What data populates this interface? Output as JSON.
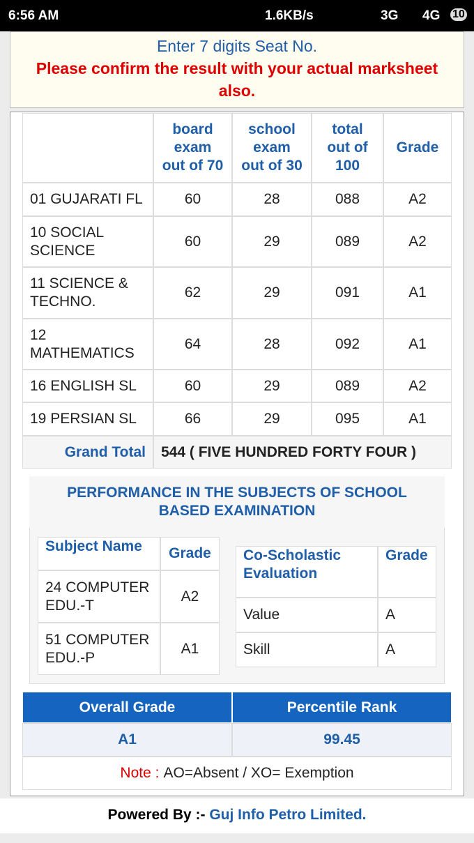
{
  "status_bar": {
    "time": "6:56 AM",
    "speed": "1.6KB/s",
    "net1": "3G",
    "net2": "4G",
    "battery": "10"
  },
  "notice": {
    "instruction": "Enter 7 digits Seat No.",
    "warning": "Please confirm the result with your actual marksheet also."
  },
  "results": {
    "headers": [
      [],
      [
        "board",
        "exam",
        "out of 70"
      ],
      [
        "school",
        "exam",
        "out of 30"
      ],
      [
        "total",
        "out of",
        "100"
      ],
      [
        "Grade"
      ]
    ],
    "rows": [
      [
        "01 GUJARATI FL",
        60,
        28,
        "088",
        "A2"
      ],
      [
        "10 SOCIAL SCIENCE",
        60,
        29,
        "089",
        "A2"
      ],
      [
        "11 SCIENCE & TECHNO.",
        62,
        29,
        "091",
        "A1"
      ],
      [
        "12 MATHEMATICS",
        64,
        28,
        "092",
        "A1"
      ],
      [
        "16 ENGLISH SL",
        60,
        29,
        "089",
        "A2"
      ],
      [
        "19 PERSIAN SL",
        66,
        29,
        "095",
        "A1"
      ]
    ],
    "grand_total": {
      "label": "Grand Total",
      "value": "544 ( FIVE HUNDRED FORTY FOUR )"
    }
  },
  "performance": {
    "title": "PERFORMANCE IN THE SUBJECTS OF SCHOOL BASED EXAMINATION",
    "school_table": {
      "headers": [
        "Subject Name",
        "Grade"
      ],
      "rows": [
        [
          "24 COMPUTER EDU.-T",
          "A2"
        ],
        [
          "51 COMPUTER EDU.-P",
          "A1"
        ]
      ]
    },
    "co_scholastic": {
      "headers": [
        "Co-Scholastic Evaluation",
        "Grade"
      ],
      "rows": [
        [
          "Value",
          "A"
        ],
        [
          "Skill",
          "A"
        ]
      ]
    }
  },
  "overall": {
    "headers": [
      "Overall Grade",
      "Percentile Rank"
    ],
    "values": [
      "A1",
      "99.45"
    ],
    "note_label": "Note :",
    "note_text": "AO=Absent / XO= Exemption"
  },
  "footer": {
    "label": "Powered By :-",
    "company": "Guj Info Petro Limited."
  }
}
